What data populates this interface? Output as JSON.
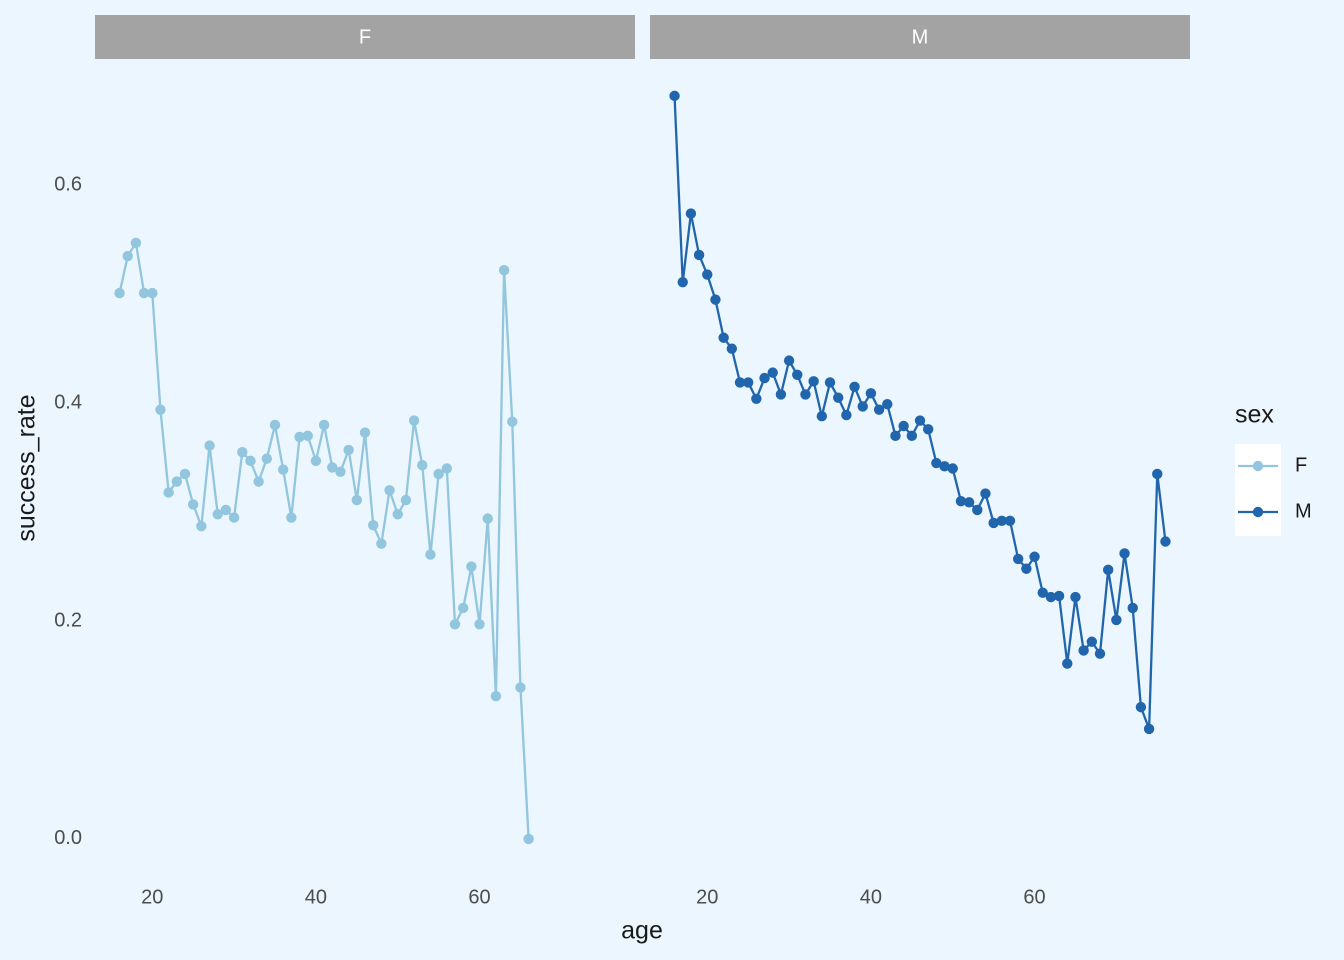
{
  "chart_data": [
    {
      "type": "line",
      "title": "F",
      "xlabel": "age",
      "ylabel": "success_rate",
      "legend_title": "sex",
      "legend_position": "right",
      "x": [
        16,
        17,
        18,
        19,
        20,
        21,
        22,
        23,
        24,
        25,
        26,
        27,
        28,
        29,
        30,
        31,
        32,
        33,
        34,
        35,
        36,
        37,
        38,
        39,
        40,
        41,
        42,
        43,
        44,
        45,
        46,
        47,
        48,
        49,
        50,
        51,
        52,
        53,
        54,
        55,
        56,
        57,
        58,
        59,
        60,
        61,
        62,
        63,
        64,
        65,
        66
      ],
      "series": [
        {
          "name": "F",
          "color": "#92c5de",
          "values": [
            0.501,
            0.535,
            0.547,
            0.501,
            0.501,
            0.394,
            0.318,
            0.328,
            0.335,
            0.307,
            0.287,
            0.361,
            0.298,
            0.302,
            0.295,
            0.355,
            0.347,
            0.328,
            0.349,
            0.38,
            0.339,
            0.295,
            0.369,
            0.37,
            0.347,
            0.38,
            0.341,
            0.337,
            0.357,
            0.311,
            0.373,
            0.288,
            0.271,
            0.32,
            0.298,
            0.311,
            0.384,
            0.343,
            0.261,
            0.335,
            0.34,
            0.197,
            0.212,
            0.25,
            0.197,
            0.294,
            0.131,
            0.522,
            0.383,
            0.139,
            0
          ]
        }
      ],
      "xlim": [
        13,
        79
      ],
      "xticks": [
        20,
        40,
        60
      ],
      "ylim": [
        -0.034,
        0.714
      ],
      "yticks": [
        {
          "value": 0,
          "label": "0.0"
        },
        0.2,
        0.4,
        0.6
      ]
    },
    {
      "type": "line",
      "title": "M",
      "x": [
        16,
        17,
        18,
        19,
        20,
        21,
        22,
        23,
        24,
        25,
        26,
        27,
        28,
        29,
        30,
        31,
        32,
        33,
        34,
        35,
        36,
        37,
        38,
        39,
        40,
        41,
        42,
        43,
        44,
        45,
        46,
        47,
        48,
        49,
        50,
        51,
        52,
        53,
        54,
        55,
        56,
        57,
        58,
        59,
        60,
        61,
        62,
        63,
        64,
        65,
        66,
        67,
        68,
        69,
        70,
        71,
        72,
        73,
        74,
        75,
        76
      ],
      "series": [
        {
          "name": "M",
          "color": "#2166ac",
          "values": [
            0.682,
            0.511,
            0.574,
            0.536,
            0.518,
            0.495,
            0.46,
            0.45,
            0.419,
            0.419,
            0.404,
            0.423,
            0.428,
            0.408,
            0.439,
            0.426,
            0.408,
            0.42,
            0.388,
            0.419,
            0.405,
            0.389,
            0.415,
            0.397,
            0.409,
            0.394,
            0.399,
            0.37,
            0.379,
            0.37,
            0.384,
            0.376,
            0.345,
            0.342,
            0.34,
            0.31,
            0.309,
            0.302,
            0.317,
            0.29,
            0.292,
            0.292,
            0.257,
            0.248,
            0.259,
            0.226,
            0.222,
            0.223,
            0.161,
            0.222,
            0.173,
            0.181,
            0.17,
            0.247,
            0.201,
            0.262,
            0.212,
            0.121,
            0.101,
            0.335,
            0.273
          ]
        }
      ],
      "xlim": [
        13,
        79
      ],
      "xticks": [
        20,
        40,
        60
      ],
      "ylim": [
        -0.034,
        0.714
      ]
    }
  ]
}
